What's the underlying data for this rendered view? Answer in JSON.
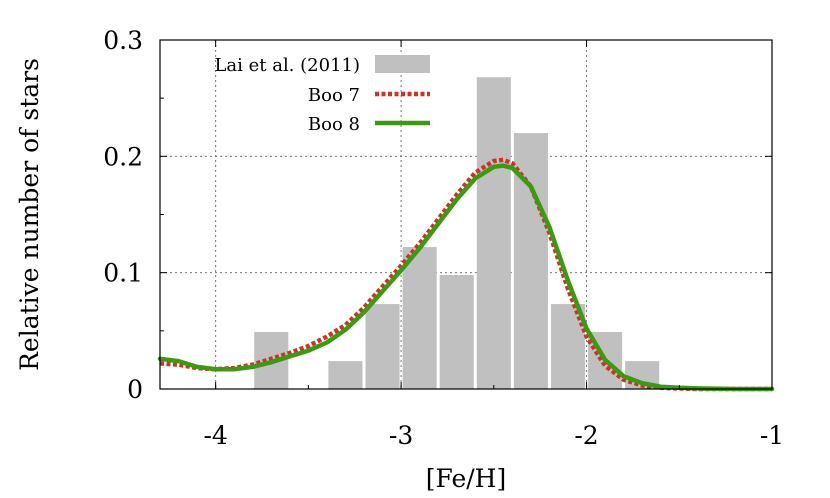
{
  "chart_data": {
    "type": "bar",
    "xlabel": "[Fe/H]",
    "ylabel": "Relative number of stars",
    "xlim": [
      -4.3,
      -1.0
    ],
    "ylim": [
      0,
      0.3
    ],
    "x_ticks": [
      -4,
      -3,
      -2,
      -1
    ],
    "x_tick_labels": [
      "-4",
      "-3",
      "-2",
      "-1"
    ],
    "y_ticks": [
      0,
      0.1,
      0.2,
      0.3
    ],
    "y_tick_labels": [
      "0",
      "0.1",
      "0.2",
      "0.3"
    ],
    "grid": true,
    "legend_position": "top-left",
    "histogram": {
      "name": "Lai et al. (2011)",
      "color": "#c0c0c0",
      "bin_width": 0.2,
      "bars": [
        {
          "x": -3.7,
          "value": 0.049
        },
        {
          "x": -3.3,
          "value": 0.024
        },
        {
          "x": -3.1,
          "value": 0.073
        },
        {
          "x": -2.9,
          "value": 0.122
        },
        {
          "x": -2.7,
          "value": 0.098
        },
        {
          "x": -2.5,
          "value": 0.268
        },
        {
          "x": -2.3,
          "value": 0.22
        },
        {
          "x": -2.1,
          "value": 0.073
        },
        {
          "x": -1.9,
          "value": 0.049
        },
        {
          "x": -1.7,
          "value": 0.024
        }
      ]
    },
    "series": [
      {
        "name": "Boo 7",
        "color": "#cc3322",
        "style": "dashed",
        "x": [
          -4.3,
          -4.2,
          -4.1,
          -4.0,
          -3.9,
          -3.8,
          -3.7,
          -3.6,
          -3.5,
          -3.4,
          -3.3,
          -3.2,
          -3.1,
          -3.0,
          -2.9,
          -2.8,
          -2.7,
          -2.6,
          -2.5,
          -2.45,
          -2.4,
          -2.3,
          -2.2,
          -2.1,
          -2.0,
          -1.9,
          -1.8,
          -1.7,
          -1.6,
          -1.5,
          -1.4,
          -1.2,
          -1.0
        ],
        "y": [
          0.022,
          0.021,
          0.018,
          0.017,
          0.018,
          0.021,
          0.026,
          0.031,
          0.037,
          0.045,
          0.055,
          0.07,
          0.088,
          0.106,
          0.125,
          0.146,
          0.167,
          0.186,
          0.196,
          0.197,
          0.194,
          0.174,
          0.134,
          0.086,
          0.045,
          0.02,
          0.008,
          0.003,
          0.001,
          0.0005,
          0.0,
          0.0,
          0.0
        ]
      },
      {
        "name": "Boo 8",
        "color": "#3a9a10",
        "style": "solid",
        "x": [
          -4.3,
          -4.2,
          -4.1,
          -4.0,
          -3.9,
          -3.8,
          -3.7,
          -3.6,
          -3.5,
          -3.4,
          -3.3,
          -3.2,
          -3.1,
          -3.0,
          -2.9,
          -2.8,
          -2.7,
          -2.6,
          -2.5,
          -2.45,
          -2.4,
          -2.3,
          -2.2,
          -2.1,
          -2.0,
          -1.9,
          -1.8,
          -1.7,
          -1.6,
          -1.5,
          -1.4,
          -1.2,
          -1.0
        ],
        "y": [
          0.026,
          0.024,
          0.019,
          0.017,
          0.017,
          0.019,
          0.023,
          0.028,
          0.033,
          0.04,
          0.051,
          0.066,
          0.084,
          0.102,
          0.121,
          0.142,
          0.163,
          0.181,
          0.191,
          0.192,
          0.19,
          0.174,
          0.139,
          0.093,
          0.052,
          0.025,
          0.011,
          0.005,
          0.002,
          0.001,
          0.0005,
          0.0,
          0.0
        ]
      }
    ]
  }
}
